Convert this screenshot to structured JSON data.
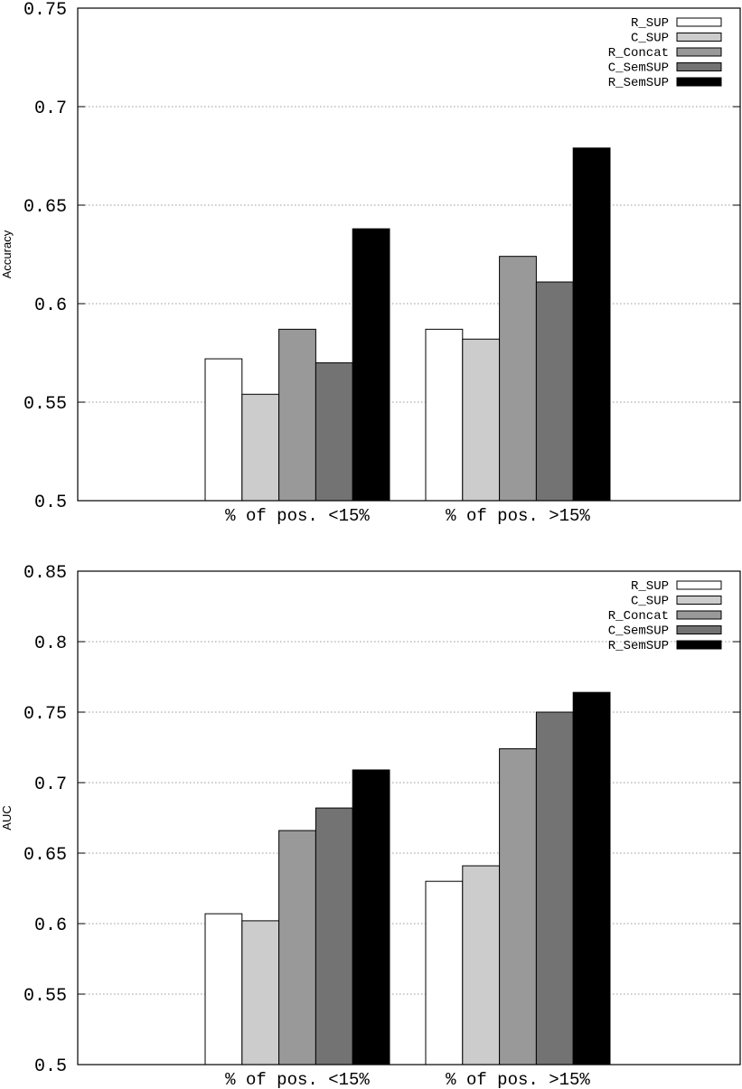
{
  "chart_data": [
    {
      "type": "bar",
      "ylabel": "Accuracy",
      "xlabel": "",
      "ylim": [
        0.5,
        0.75
      ],
      "yticks": [
        "0.5",
        "0.55",
        "0.6",
        "0.65",
        "0.7",
        "0.75"
      ],
      "categories": [
        "% of pos. <15%",
        "% of pos. >15%"
      ],
      "series": [
        {
          "name": "R_SUP",
          "color": "#ffffff",
          "values": [
            0.572,
            0.587
          ]
        },
        {
          "name": "C_SUP",
          "color": "#cccccc",
          "values": [
            0.554,
            0.582
          ]
        },
        {
          "name": "R_Concat",
          "color": "#999999",
          "values": [
            0.587,
            0.624
          ]
        },
        {
          "name": "C_SemSUP",
          "color": "#737373",
          "values": [
            0.57,
            0.611
          ]
        },
        {
          "name": "R_SemSUP",
          "color": "#000000",
          "values": [
            0.638,
            0.679
          ]
        }
      ],
      "grid": "horizontal dotted",
      "legend": "top-right"
    },
    {
      "type": "bar",
      "ylabel": "AUC",
      "xlabel": "",
      "ylim": [
        0.5,
        0.85
      ],
      "yticks": [
        "0.5",
        "0.55",
        "0.6",
        "0.65",
        "0.7",
        "0.75",
        "0.8",
        "0.85"
      ],
      "categories": [
        "% of pos. <15%",
        "% of pos. >15%"
      ],
      "series": [
        {
          "name": "R_SUP",
          "color": "#ffffff",
          "values": [
            0.607,
            0.63
          ]
        },
        {
          "name": "C_SUP",
          "color": "#cccccc",
          "values": [
            0.602,
            0.641
          ]
        },
        {
          "name": "R_Concat",
          "color": "#999999",
          "values": [
            0.666,
            0.724
          ]
        },
        {
          "name": "C_SemSUP",
          "color": "#737373",
          "values": [
            0.682,
            0.75
          ]
        },
        {
          "name": "R_SemSUP",
          "color": "#000000",
          "values": [
            0.709,
            0.764
          ]
        }
      ],
      "grid": "horizontal dotted",
      "legend": "top-right"
    }
  ]
}
